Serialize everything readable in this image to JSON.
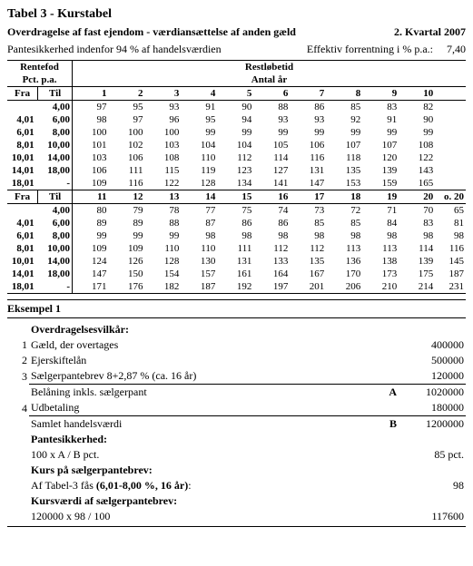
{
  "title": "Tabel 3 - Kurstabel",
  "subtitle_left": "Overdragelse af fast ejendom - værdiansættelse af anden gæld",
  "subtitle_right": "2. Kvartal 2007",
  "info_left": "Pantesikkerhed indenfor 94 % af handelsværdien",
  "info_right_label": "Effektiv forrentning i % p.a.:",
  "info_right_value": "7,40",
  "hdr_rentefod": "Rentefod",
  "hdr_pct": "Pct. p.a.",
  "hdr_restlobetid": "Restløbetid",
  "hdr_antal": "Antal år",
  "hdr_fra": "Fra",
  "hdr_til": "Til",
  "hdr_o20": "o. 20",
  "cols1": [
    "1",
    "2",
    "3",
    "4",
    "5",
    "6",
    "7",
    "8",
    "9",
    "10"
  ],
  "cols2": [
    "11",
    "12",
    "13",
    "14",
    "15",
    "16",
    "17",
    "18",
    "19",
    "20"
  ],
  "range_from": [
    "",
    "4,01",
    "6,01",
    "8,01",
    "10,01",
    "14,01",
    "18,01"
  ],
  "range_to": [
    "4,00",
    "6,00",
    "8,00",
    "10,00",
    "14,00",
    "18,00",
    "-"
  ],
  "block1": [
    [
      "97",
      "95",
      "93",
      "91",
      "90",
      "88",
      "86",
      "85",
      "83",
      "82"
    ],
    [
      "98",
      "97",
      "96",
      "95",
      "94",
      "93",
      "93",
      "92",
      "91",
      "90"
    ],
    [
      "100",
      "100",
      "100",
      "99",
      "99",
      "99",
      "99",
      "99",
      "99",
      "99"
    ],
    [
      "101",
      "102",
      "103",
      "104",
      "104",
      "105",
      "106",
      "107",
      "107",
      "108"
    ],
    [
      "103",
      "106",
      "108",
      "110",
      "112",
      "114",
      "116",
      "118",
      "120",
      "122"
    ],
    [
      "106",
      "111",
      "115",
      "119",
      "123",
      "127",
      "131",
      "135",
      "139",
      "143"
    ],
    [
      "109",
      "116",
      "122",
      "128",
      "134",
      "141",
      "147",
      "153",
      "159",
      "165"
    ]
  ],
  "block2": [
    [
      "80",
      "79",
      "78",
      "77",
      "75",
      "74",
      "73",
      "72",
      "71",
      "70"
    ],
    [
      "89",
      "89",
      "88",
      "87",
      "86",
      "86",
      "85",
      "85",
      "84",
      "83"
    ],
    [
      "99",
      "99",
      "99",
      "98",
      "98",
      "98",
      "98",
      "98",
      "98",
      "98"
    ],
    [
      "109",
      "109",
      "110",
      "110",
      "111",
      "112",
      "112",
      "113",
      "113",
      "114"
    ],
    [
      "124",
      "126",
      "128",
      "130",
      "131",
      "133",
      "135",
      "136",
      "138",
      "139"
    ],
    [
      "147",
      "150",
      "154",
      "157",
      "161",
      "164",
      "167",
      "170",
      "173",
      "175"
    ],
    [
      "171",
      "176",
      "182",
      "187",
      "192",
      "197",
      "201",
      "206",
      "210",
      "214"
    ]
  ],
  "o20": [
    "65",
    "81",
    "98",
    "116",
    "145",
    "187",
    "231"
  ],
  "eksempel_title": "Eksempel 1",
  "eks_header": "Overdragelsesvilkår:",
  "eks_rows": [
    {
      "n": "1",
      "label": "Gæld, der overtages",
      "mid": "",
      "val": "400000",
      "uline": false,
      "bold": false
    },
    {
      "n": "2",
      "label": "Ejerskiftelån",
      "mid": "",
      "val": "500000",
      "uline": false,
      "bold": false
    },
    {
      "n": "3",
      "label": "Sælgerpantebrev 8+2,87 % (ca. 16 år)",
      "mid": "",
      "val": "120000",
      "uline": true,
      "bold": false
    },
    {
      "n": "",
      "label": "Belåning inkls. sælgerpant",
      "mid": "A",
      "val": "1020000",
      "uline": false,
      "bold": false
    },
    {
      "n": "4",
      "label": "Udbetaling",
      "mid": "",
      "val": "180000",
      "uline": true,
      "bold": false
    },
    {
      "n": "",
      "label": "Samlet handelsværdi",
      "mid": "B",
      "val": "1200000",
      "uline": false,
      "bold": false
    },
    {
      "n": "",
      "label": "Pantesikkerhed:",
      "mid": "",
      "val": "",
      "uline": false,
      "bold": true
    },
    {
      "n": "",
      "label": "100 x A / B pct.",
      "mid": "",
      "val": "85 pct.",
      "uline": false,
      "bold": false
    },
    {
      "n": "",
      "label": "Kurs på sælgerpantebrev:",
      "mid": "",
      "val": "",
      "uline": false,
      "bold": true
    },
    {
      "n": "",
      "label": "Af Tabel-3 fås (6,01-8,00 %, 16 år):",
      "mid": "",
      "val": "98",
      "uline": false,
      "bold": false
    },
    {
      "n": "",
      "label": "Kursværdi af sælgerpantebrev:",
      "mid": "",
      "val": "",
      "uline": false,
      "bold": true
    },
    {
      "n": "",
      "label": "120000 x 98 / 100",
      "mid": "",
      "val": "117600",
      "uline": false,
      "bold": false
    }
  ],
  "bold_inline_row9": "(6,01-8,00 %, 16 år)"
}
